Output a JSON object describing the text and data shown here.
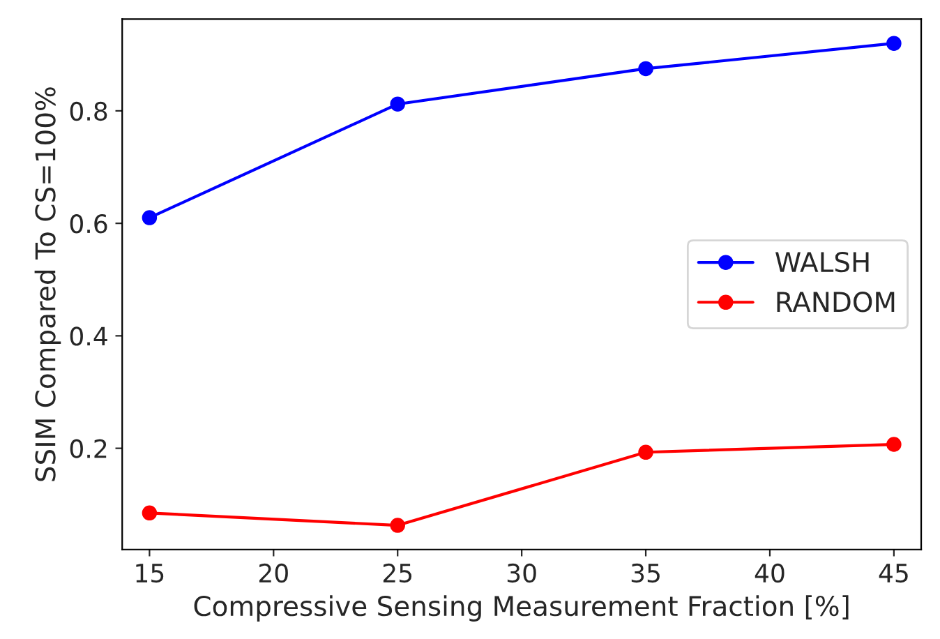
{
  "chart_data": {
    "type": "line",
    "xlabel": "Compressive Sensing Measurement Fraction [%]",
    "ylabel": "SSIM Compared To CS=100%",
    "x": [
      15,
      25,
      35,
      45
    ],
    "series": [
      {
        "name": "WALSH",
        "color": "#0000ff",
        "values": [
          0.61,
          0.812,
          0.875,
          0.92
        ]
      },
      {
        "name": "RANDOM",
        "color": "#ff0000",
        "values": [
          0.085,
          0.063,
          0.193,
          0.207
        ]
      }
    ],
    "xlim": [
      13.9,
      46.1
    ],
    "xticks": [
      15,
      20,
      25,
      30,
      35,
      40,
      45
    ],
    "ylim": [
      0.02,
      0.963
    ],
    "yticks": [
      0.2,
      0.4,
      0.6,
      0.8
    ],
    "marker": "circle",
    "line_style": "solid",
    "grid": false,
    "legend": "right"
  }
}
